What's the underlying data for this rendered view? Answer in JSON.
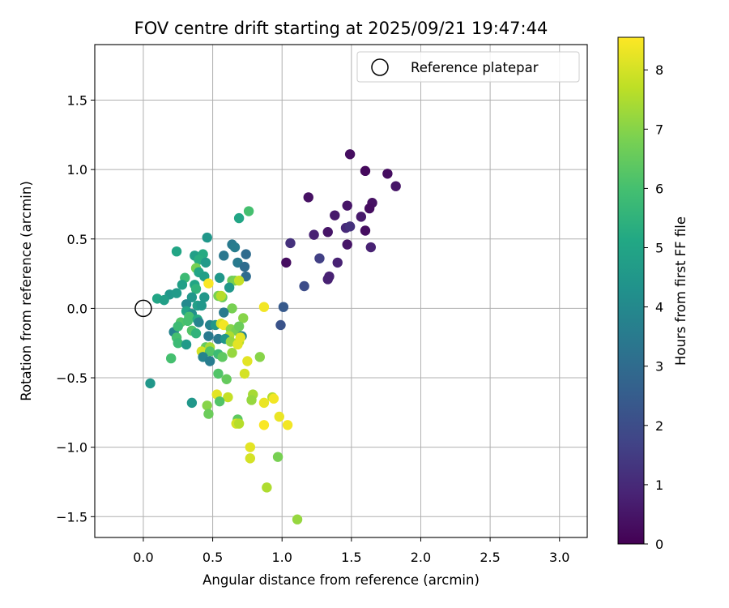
{
  "chart_data": {
    "type": "scatter",
    "title": "FOV centre drift starting at 2025/09/21 19:47:44",
    "xlabel": "Angular distance from reference (arcmin)",
    "ylabel": "Rotation from reference (arcmin)",
    "xlim": [
      -0.35,
      3.2
    ],
    "ylim": [
      -1.65,
      1.9
    ],
    "xticks": [
      0.0,
      0.5,
      1.0,
      1.5,
      2.0,
      2.5,
      3.0
    ],
    "xtick_labels": [
      "0.0",
      "0.5",
      "1.0",
      "1.5",
      "2.0",
      "2.5",
      "3.0"
    ],
    "yticks": [
      -1.5,
      -1.0,
      -0.5,
      0.0,
      0.5,
      1.0,
      1.5
    ],
    "ytick_labels": [
      "−1.5",
      "−1.0",
      "−0.5",
      "0.0",
      "0.5",
      "1.0",
      "1.5"
    ],
    "grid": true,
    "legend": {
      "label": "Reference platepar",
      "placement": "top-right"
    },
    "reference_point": {
      "x": 0.0,
      "y": 0.0
    },
    "colorbar": {
      "label": "Hours from first FF file",
      "colormap": "viridis",
      "range": [
        0,
        8.55
      ],
      "ticks": [
        0,
        1,
        2,
        3,
        4,
        5,
        6,
        7,
        8
      ],
      "tick_labels": [
        "0",
        "1",
        "2",
        "3",
        "4",
        "5",
        "6",
        "7",
        "8"
      ]
    },
    "points": [
      {
        "x": 1.49,
        "y": 1.11,
        "h": 0.3
      },
      {
        "x": 1.6,
        "y": 0.99,
        "h": 0.2
      },
      {
        "x": 1.76,
        "y": 0.97,
        "h": 0.3
      },
      {
        "x": 1.82,
        "y": 0.88,
        "h": 0.5
      },
      {
        "x": 1.19,
        "y": 0.8,
        "h": 0.4
      },
      {
        "x": 1.47,
        "y": 0.74,
        "h": 0.5
      },
      {
        "x": 1.65,
        "y": 0.76,
        "h": 0.4
      },
      {
        "x": 1.63,
        "y": 0.72,
        "h": 0.3
      },
      {
        "x": 1.38,
        "y": 0.67,
        "h": 0.6
      },
      {
        "x": 1.57,
        "y": 0.66,
        "h": 0.6
      },
      {
        "x": 1.46,
        "y": 0.58,
        "h": 1.0
      },
      {
        "x": 1.49,
        "y": 0.59,
        "h": 1.2
      },
      {
        "x": 1.6,
        "y": 0.56,
        "h": 0.3
      },
      {
        "x": 1.33,
        "y": 0.55,
        "h": 0.5
      },
      {
        "x": 1.23,
        "y": 0.53,
        "h": 0.8
      },
      {
        "x": 1.47,
        "y": 0.46,
        "h": 0.5
      },
      {
        "x": 1.64,
        "y": 0.44,
        "h": 0.8
      },
      {
        "x": 1.06,
        "y": 0.47,
        "h": 1.2
      },
      {
        "x": 1.27,
        "y": 0.36,
        "h": 1.6
      },
      {
        "x": 1.03,
        "y": 0.33,
        "h": 0.3
      },
      {
        "x": 1.4,
        "y": 0.33,
        "h": 0.8
      },
      {
        "x": 1.34,
        "y": 0.23,
        "h": 0.8
      },
      {
        "x": 1.33,
        "y": 0.21,
        "h": 0.8
      },
      {
        "x": 1.16,
        "y": 0.16,
        "h": 2.0
      },
      {
        "x": 1.01,
        "y": 0.01,
        "h": 2.4
      },
      {
        "x": 0.99,
        "y": -0.12,
        "h": 2.2
      },
      {
        "x": 0.76,
        "y": 0.7,
        "h": 6.0
      },
      {
        "x": 0.69,
        "y": 0.65,
        "h": 5.0
      },
      {
        "x": 0.46,
        "y": 0.51,
        "h": 4.5
      },
      {
        "x": 0.64,
        "y": 0.46,
        "h": 3.5
      },
      {
        "x": 0.66,
        "y": 0.44,
        "h": 3.6
      },
      {
        "x": 0.24,
        "y": 0.41,
        "h": 5.0
      },
      {
        "x": 0.58,
        "y": 0.38,
        "h": 3.4
      },
      {
        "x": 0.74,
        "y": 0.39,
        "h": 3.0
      },
      {
        "x": 0.37,
        "y": 0.38,
        "h": 4.8
      },
      {
        "x": 0.43,
        "y": 0.39,
        "h": 5.2
      },
      {
        "x": 0.4,
        "y": 0.35,
        "h": 5.3
      },
      {
        "x": 0.45,
        "y": 0.33,
        "h": 4.6
      },
      {
        "x": 0.68,
        "y": 0.33,
        "h": 3.5
      },
      {
        "x": 0.73,
        "y": 0.3,
        "h": 3.0
      },
      {
        "x": 0.38,
        "y": 0.29,
        "h": 6.8
      },
      {
        "x": 0.4,
        "y": 0.26,
        "h": 5.0
      },
      {
        "x": 0.44,
        "y": 0.23,
        "h": 4.8
      },
      {
        "x": 0.3,
        "y": 0.22,
        "h": 5.8
      },
      {
        "x": 0.55,
        "y": 0.22,
        "h": 4.5
      },
      {
        "x": 0.74,
        "y": 0.23,
        "h": 3.0
      },
      {
        "x": 0.64,
        "y": 0.2,
        "h": 6.6
      },
      {
        "x": 0.66,
        "y": 0.2,
        "h": 6.8
      },
      {
        "x": 0.69,
        "y": 0.2,
        "h": 7.8
      },
      {
        "x": 0.47,
        "y": 0.18,
        "h": 8.5
      },
      {
        "x": 0.28,
        "y": 0.17,
        "h": 4.8
      },
      {
        "x": 0.37,
        "y": 0.17,
        "h": 5.0
      },
      {
        "x": 0.62,
        "y": 0.15,
        "h": 4.5
      },
      {
        "x": 0.38,
        "y": 0.14,
        "h": 5.5
      },
      {
        "x": 0.19,
        "y": 0.1,
        "h": 4.5
      },
      {
        "x": 0.24,
        "y": 0.11,
        "h": 4.6
      },
      {
        "x": 0.35,
        "y": 0.08,
        "h": 4.5
      },
      {
        "x": 0.44,
        "y": 0.08,
        "h": 4.5
      },
      {
        "x": 0.54,
        "y": 0.09,
        "h": 6.8
      },
      {
        "x": 0.57,
        "y": 0.08,
        "h": 6.6
      },
      {
        "x": 0.1,
        "y": 0.07,
        "h": 5.0
      },
      {
        "x": 0.15,
        "y": 0.06,
        "h": 4.8
      },
      {
        "x": 0.56,
        "y": 0.09,
        "h": 7.6
      },
      {
        "x": 0.31,
        "y": 0.03,
        "h": 4.0
      },
      {
        "x": 0.39,
        "y": 0.02,
        "h": 4.8
      },
      {
        "x": 0.42,
        "y": 0.02,
        "h": 4.5
      },
      {
        "x": 0.64,
        "y": 0.0,
        "h": 6.8
      },
      {
        "x": 0.87,
        "y": 0.01,
        "h": 8.4
      },
      {
        "x": 0.31,
        "y": -0.02,
        "h": 5.0
      },
      {
        "x": 0.58,
        "y": -0.03,
        "h": 3.5
      },
      {
        "x": 0.35,
        "y": -0.04,
        "h": 4.2
      },
      {
        "x": 0.72,
        "y": -0.07,
        "h": 7.0
      },
      {
        "x": 0.33,
        "y": -0.06,
        "h": 6.0
      },
      {
        "x": 0.39,
        "y": -0.08,
        "h": 5.2
      },
      {
        "x": 0.27,
        "y": -0.1,
        "h": 6.2
      },
      {
        "x": 0.32,
        "y": -0.09,
        "h": 6.0
      },
      {
        "x": 0.4,
        "y": -0.1,
        "h": 3.8
      },
      {
        "x": 0.48,
        "y": -0.12,
        "h": 3.8
      },
      {
        "x": 0.52,
        "y": -0.12,
        "h": 4.5
      },
      {
        "x": 0.56,
        "y": -0.11,
        "h": 8.0
      },
      {
        "x": 0.58,
        "y": -0.12,
        "h": 8.4
      },
      {
        "x": 0.22,
        "y": -0.17,
        "h": 3.8
      },
      {
        "x": 0.25,
        "y": -0.13,
        "h": 5.8
      },
      {
        "x": 0.35,
        "y": -0.16,
        "h": 6.2
      },
      {
        "x": 0.63,
        "y": -0.15,
        "h": 7.0
      },
      {
        "x": 0.67,
        "y": -0.16,
        "h": 6.8
      },
      {
        "x": 0.69,
        "y": -0.13,
        "h": 6.6
      },
      {
        "x": 0.38,
        "y": -0.18,
        "h": 5.5
      },
      {
        "x": 0.24,
        "y": -0.21,
        "h": 6.0
      },
      {
        "x": 0.47,
        "y": -0.2,
        "h": 3.5
      },
      {
        "x": 0.62,
        "y": -0.2,
        "h": 7.5
      },
      {
        "x": 0.71,
        "y": -0.2,
        "h": 3.8
      },
      {
        "x": 0.54,
        "y": -0.22,
        "h": 3.5
      },
      {
        "x": 0.59,
        "y": -0.22,
        "h": 4.5
      },
      {
        "x": 0.25,
        "y": -0.25,
        "h": 5.8
      },
      {
        "x": 0.31,
        "y": -0.26,
        "h": 4.6
      },
      {
        "x": 0.45,
        "y": -0.28,
        "h": 6.5
      },
      {
        "x": 0.48,
        "y": -0.28,
        "h": 7.4
      },
      {
        "x": 0.63,
        "y": -0.24,
        "h": 7.2
      },
      {
        "x": 0.69,
        "y": -0.24,
        "h": 7.6
      },
      {
        "x": 0.7,
        "y": -0.21,
        "h": 8.2
      },
      {
        "x": 0.68,
        "y": -0.26,
        "h": 8.2
      },
      {
        "x": 0.42,
        "y": -0.31,
        "h": 8.0
      },
      {
        "x": 0.48,
        "y": -0.31,
        "h": 6.2
      },
      {
        "x": 0.54,
        "y": -0.33,
        "h": 5.8
      },
      {
        "x": 0.57,
        "y": -0.35,
        "h": 6.4
      },
      {
        "x": 0.64,
        "y": -0.32,
        "h": 7.2
      },
      {
        "x": 0.2,
        "y": -0.36,
        "h": 6.0
      },
      {
        "x": 0.43,
        "y": -0.35,
        "h": 3.8
      },
      {
        "x": 0.48,
        "y": -0.38,
        "h": 3.6
      },
      {
        "x": 0.75,
        "y": -0.38,
        "h": 8.2
      },
      {
        "x": 0.84,
        "y": -0.35,
        "h": 7.0
      },
      {
        "x": 0.54,
        "y": -0.47,
        "h": 6.2
      },
      {
        "x": 0.6,
        "y": -0.51,
        "h": 6.5
      },
      {
        "x": 0.73,
        "y": -0.47,
        "h": 8.0
      },
      {
        "x": 0.05,
        "y": -0.54,
        "h": 4.5
      },
      {
        "x": 0.53,
        "y": -0.62,
        "h": 8.2
      },
      {
        "x": 0.61,
        "y": -0.64,
        "h": 7.8
      },
      {
        "x": 0.79,
        "y": -0.62,
        "h": 7.4
      },
      {
        "x": 0.93,
        "y": -0.64,
        "h": 7.6
      },
      {
        "x": 0.35,
        "y": -0.68,
        "h": 4.5
      },
      {
        "x": 0.55,
        "y": -0.67,
        "h": 6.2
      },
      {
        "x": 0.78,
        "y": -0.66,
        "h": 7.2
      },
      {
        "x": 0.87,
        "y": -0.68,
        "h": 8.3
      },
      {
        "x": 0.94,
        "y": -0.65,
        "h": 8.4
      },
      {
        "x": 0.46,
        "y": -0.7,
        "h": 7.0
      },
      {
        "x": 0.47,
        "y": -0.76,
        "h": 6.6
      },
      {
        "x": 0.68,
        "y": -0.8,
        "h": 6.4
      },
      {
        "x": 0.98,
        "y": -0.78,
        "h": 8.3
      },
      {
        "x": 0.67,
        "y": -0.83,
        "h": 8.0
      },
      {
        "x": 0.69,
        "y": -0.83,
        "h": 7.6
      },
      {
        "x": 0.87,
        "y": -0.84,
        "h": 8.5
      },
      {
        "x": 1.04,
        "y": -0.84,
        "h": 8.4
      },
      {
        "x": 0.77,
        "y": -1.0,
        "h": 8.2
      },
      {
        "x": 0.77,
        "y": -1.08,
        "h": 8.0
      },
      {
        "x": 0.97,
        "y": -1.07,
        "h": 6.8
      },
      {
        "x": 0.89,
        "y": -1.29,
        "h": 7.5
      },
      {
        "x": 1.11,
        "y": -1.52,
        "h": 7.2
      }
    ]
  }
}
